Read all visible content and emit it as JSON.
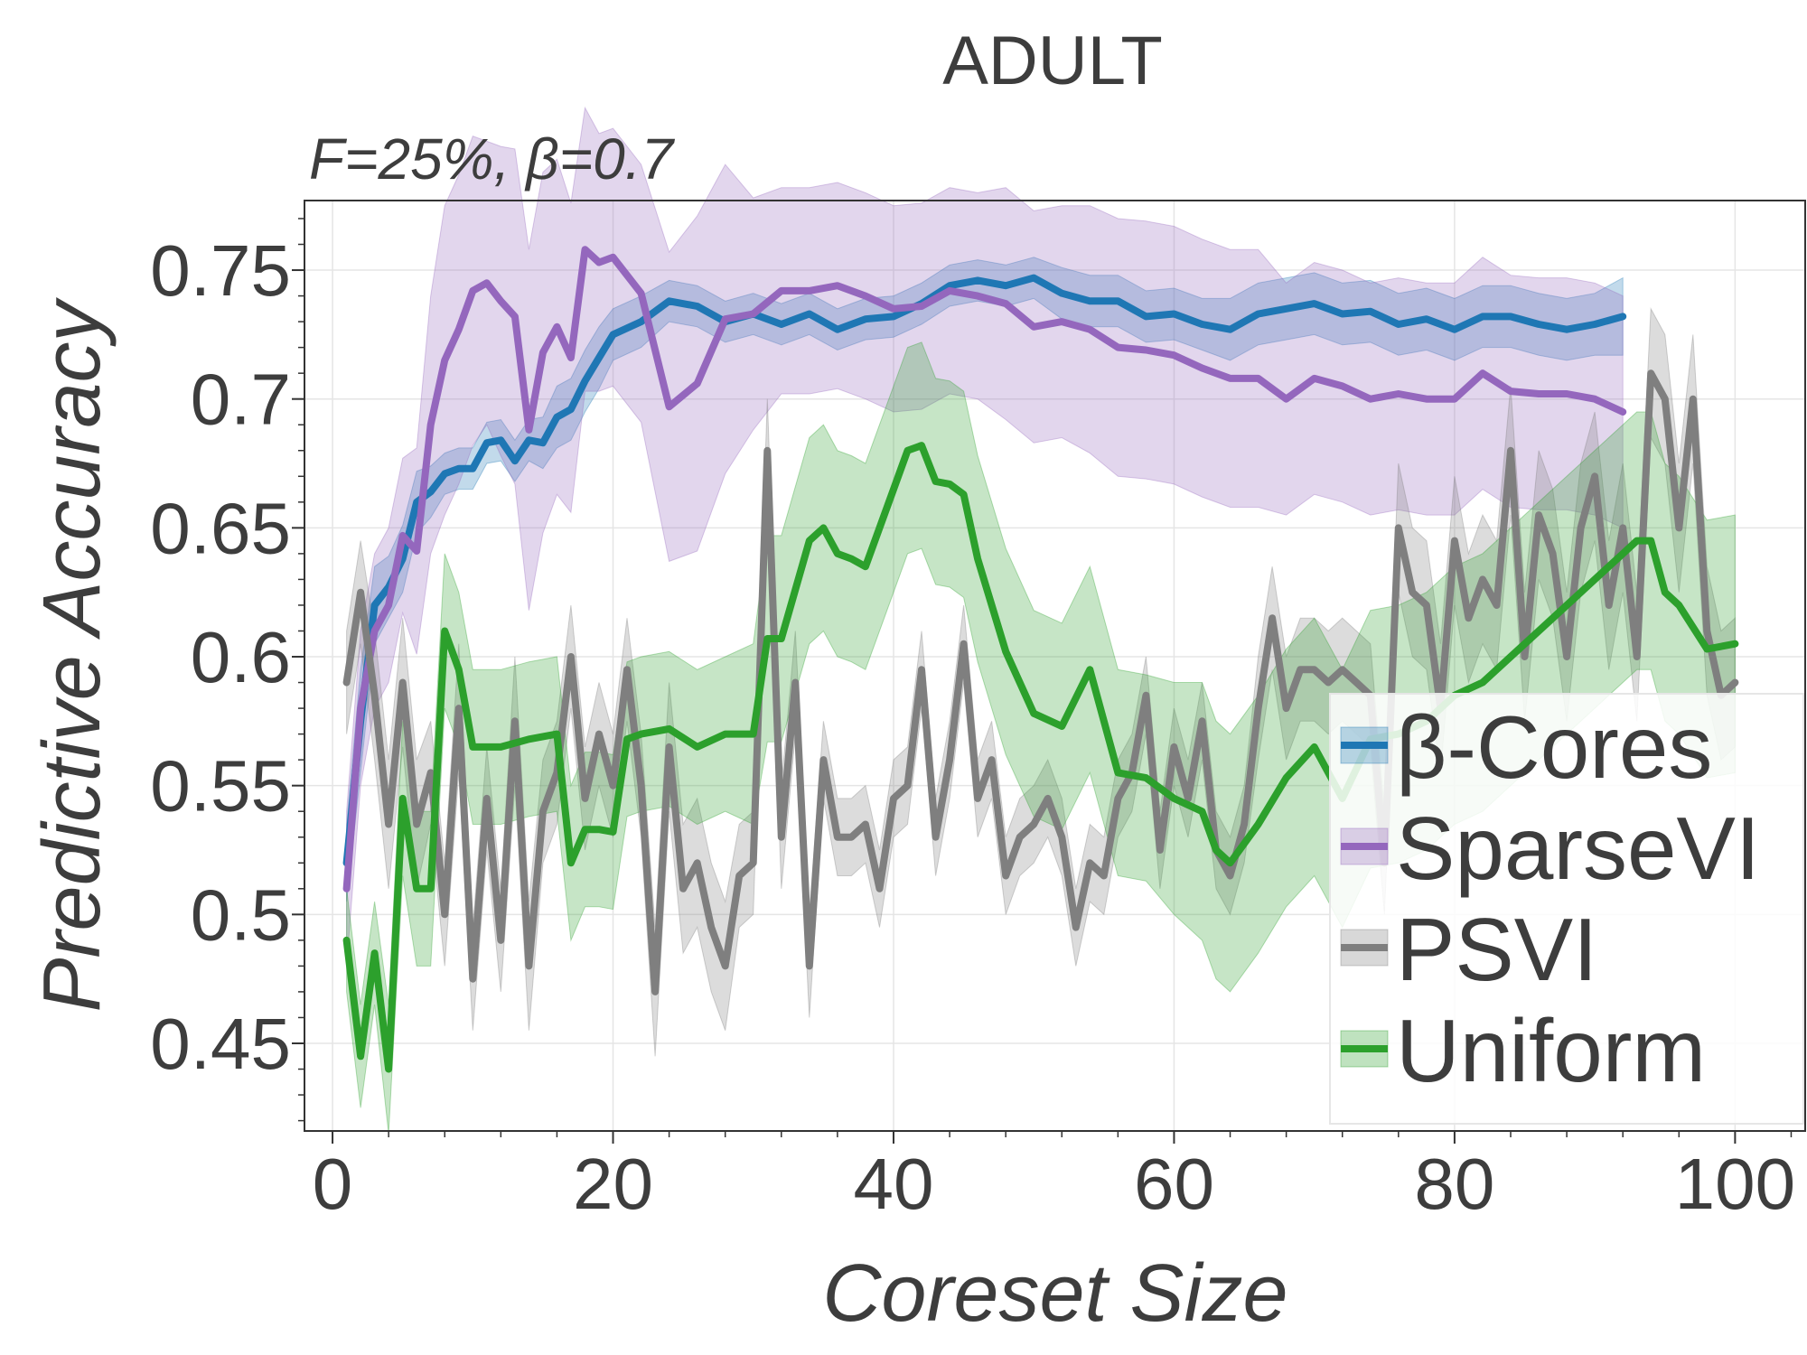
{
  "chart_data": {
    "type": "line",
    "title": "ADULT",
    "subtitle": "F=25%,  β=0.7",
    "xlabel": "Coreset Size",
    "ylabel": "Predictive Accuracy",
    "xlim": [
      -2,
      105
    ],
    "ylim": [
      0.416,
      0.777
    ],
    "xticks": [
      0,
      20,
      40,
      60,
      80,
      100
    ],
    "xtick_labels": [
      "0",
      "20",
      "40",
      "60",
      "80",
      "100"
    ],
    "yticks": [
      0.45,
      0.5,
      0.55,
      0.6,
      0.65,
      0.7,
      0.75
    ],
    "ytick_labels": [
      "0.45",
      "0.5",
      "0.55",
      "0.6",
      "0.65",
      "0.7",
      "0.75"
    ],
    "grid": true,
    "legend_position": "lower-right",
    "series": [
      {
        "name": "β-Cores",
        "color": "#1f77b4",
        "x": [
          1,
          2,
          3,
          4,
          5,
          6,
          7,
          8,
          9,
          10,
          11,
          12,
          13,
          14,
          15,
          16,
          17,
          18,
          19,
          20,
          22,
          24,
          26,
          28,
          30,
          32,
          34,
          36,
          38,
          40,
          42,
          44,
          46,
          48,
          50,
          52,
          54,
          56,
          58,
          60,
          62,
          64,
          66,
          68,
          70,
          72,
          74,
          76,
          78,
          80,
          82,
          84,
          86,
          88,
          90,
          92
        ],
        "values": [
          0.52,
          0.575,
          0.62,
          0.627,
          0.638,
          0.66,
          0.664,
          0.671,
          0.673,
          0.673,
          0.683,
          0.684,
          0.676,
          0.684,
          0.683,
          0.693,
          0.696,
          0.707,
          0.716,
          0.725,
          0.73,
          0.738,
          0.736,
          0.73,
          0.733,
          0.729,
          0.733,
          0.727,
          0.731,
          0.732,
          0.737,
          0.744,
          0.746,
          0.744,
          0.747,
          0.741,
          0.738,
          0.738,
          0.732,
          0.733,
          0.729,
          0.727,
          0.733,
          0.735,
          0.737,
          0.733,
          0.734,
          0.729,
          0.731,
          0.727,
          0.732,
          0.732,
          0.729,
          0.727,
          0.729,
          0.732
        ],
        "band": [
          0.015,
          0.02,
          0.015,
          0.012,
          0.013,
          0.012,
          0.01,
          0.008,
          0.008,
          0.008,
          0.008,
          0.008,
          0.008,
          0.008,
          0.01,
          0.012,
          0.012,
          0.012,
          0.012,
          0.01,
          0.01,
          0.008,
          0.008,
          0.008,
          0.008,
          0.008,
          0.008,
          0.008,
          0.008,
          0.008,
          0.008,
          0.008,
          0.008,
          0.008,
          0.008,
          0.01,
          0.01,
          0.01,
          0.01,
          0.01,
          0.01,
          0.012,
          0.012,
          0.012,
          0.012,
          0.012,
          0.012,
          0.012,
          0.012,
          0.012,
          0.012,
          0.012,
          0.012,
          0.012,
          0.012,
          0.015
        ]
      },
      {
        "name": "SparseVI",
        "color": "#9467bd",
        "x": [
          1,
          2,
          3,
          4,
          5,
          6,
          7,
          8,
          9,
          10,
          11,
          12,
          13,
          14,
          15,
          16,
          17,
          18,
          19,
          20,
          22,
          24,
          26,
          28,
          30,
          32,
          34,
          36,
          38,
          40,
          42,
          44,
          46,
          48,
          50,
          52,
          54,
          56,
          58,
          60,
          62,
          64,
          66,
          68,
          70,
          72,
          74,
          76,
          78,
          80,
          82,
          84,
          86,
          88,
          90,
          92
        ],
        "values": [
          0.51,
          0.58,
          0.61,
          0.62,
          0.647,
          0.641,
          0.69,
          0.715,
          0.727,
          0.742,
          0.745,
          0.738,
          0.732,
          0.688,
          0.718,
          0.728,
          0.716,
          0.758,
          0.753,
          0.755,
          0.741,
          0.697,
          0.706,
          0.731,
          0.733,
          0.742,
          0.742,
          0.744,
          0.74,
          0.735,
          0.736,
          0.742,
          0.74,
          0.737,
          0.728,
          0.73,
          0.727,
          0.72,
          0.719,
          0.717,
          0.712,
          0.708,
          0.708,
          0.7,
          0.708,
          0.705,
          0.7,
          0.702,
          0.7,
          0.7,
          0.71,
          0.703,
          0.702,
          0.702,
          0.7,
          0.695
        ],
        "band": [
          0.03,
          0.03,
          0.03,
          0.03,
          0.03,
          0.04,
          0.05,
          0.06,
          0.06,
          0.06,
          0.055,
          0.06,
          0.065,
          0.07,
          0.07,
          0.065,
          0.06,
          0.055,
          0.05,
          0.05,
          0.05,
          0.06,
          0.065,
          0.06,
          0.045,
          0.04,
          0.04,
          0.04,
          0.04,
          0.04,
          0.04,
          0.04,
          0.04,
          0.045,
          0.045,
          0.045,
          0.048,
          0.05,
          0.05,
          0.05,
          0.05,
          0.05,
          0.05,
          0.045,
          0.045,
          0.045,
          0.045,
          0.045,
          0.045,
          0.045,
          0.045,
          0.045,
          0.045,
          0.045,
          0.045,
          0.045
        ]
      },
      {
        "name": "PSVI",
        "color": "#7f7f7f",
        "x": [
          1,
          2,
          3,
          4,
          5,
          6,
          7,
          8,
          9,
          10,
          11,
          12,
          13,
          14,
          15,
          16,
          17,
          18,
          19,
          20,
          21,
          22,
          23,
          24,
          25,
          26,
          27,
          28,
          29,
          30,
          31,
          32,
          33,
          34,
          35,
          36,
          37,
          38,
          39,
          40,
          41,
          42,
          43,
          44,
          45,
          46,
          47,
          48,
          49,
          50,
          51,
          52,
          53,
          54,
          55,
          56,
          57,
          58,
          59,
          60,
          61,
          62,
          63,
          64,
          65,
          66,
          67,
          68,
          69,
          70,
          71,
          72,
          73,
          74,
          75,
          76,
          77,
          78,
          79,
          80,
          81,
          82,
          83,
          84,
          85,
          86,
          87,
          88,
          89,
          90,
          91,
          92,
          93,
          94,
          95,
          96,
          97,
          98,
          99,
          100
        ],
        "values": [
          0.59,
          0.625,
          0.585,
          0.535,
          0.59,
          0.535,
          0.555,
          0.5,
          0.58,
          0.475,
          0.545,
          0.49,
          0.575,
          0.48,
          0.54,
          0.555,
          0.6,
          0.545,
          0.57,
          0.55,
          0.595,
          0.55,
          0.47,
          0.565,
          0.51,
          0.52,
          0.495,
          0.48,
          0.515,
          0.52,
          0.68,
          0.53,
          0.59,
          0.48,
          0.56,
          0.53,
          0.53,
          0.535,
          0.51,
          0.545,
          0.55,
          0.595,
          0.53,
          0.56,
          0.605,
          0.545,
          0.56,
          0.515,
          0.53,
          0.535,
          0.545,
          0.53,
          0.495,
          0.52,
          0.515,
          0.545,
          0.555,
          0.585,
          0.525,
          0.565,
          0.545,
          0.575,
          0.525,
          0.515,
          0.535,
          0.58,
          0.615,
          0.58,
          0.595,
          0.595,
          0.59,
          0.595,
          0.59,
          0.585,
          0.52,
          0.65,
          0.625,
          0.62,
          0.58,
          0.645,
          0.615,
          0.63,
          0.62,
          0.68,
          0.6,
          0.655,
          0.64,
          0.6,
          0.65,
          0.67,
          0.62,
          0.65,
          0.6,
          0.71,
          0.7,
          0.65,
          0.7,
          0.61,
          0.585,
          0.59
        ],
        "band": [
          0.02,
          0.02,
          0.025,
          0.025,
          0.025,
          0.025,
          0.02,
          0.02,
          0.025,
          0.02,
          0.02,
          0.02,
          0.025,
          0.025,
          0.02,
          0.02,
          0.02,
          0.02,
          0.02,
          0.02,
          0.02,
          0.02,
          0.025,
          0.025,
          0.025,
          0.025,
          0.025,
          0.025,
          0.02,
          0.02,
          0.02,
          0.02,
          0.02,
          0.02,
          0.015,
          0.015,
          0.015,
          0.015,
          0.015,
          0.015,
          0.015,
          0.015,
          0.015,
          0.015,
          0.015,
          0.015,
          0.015,
          0.015,
          0.015,
          0.015,
          0.015,
          0.015,
          0.015,
          0.015,
          0.015,
          0.015,
          0.015,
          0.015,
          0.015,
          0.015,
          0.015,
          0.015,
          0.015,
          0.015,
          0.015,
          0.02,
          0.02,
          0.02,
          0.02,
          0.02,
          0.02,
          0.02,
          0.02,
          0.02,
          0.02,
          0.025,
          0.025,
          0.025,
          0.025,
          0.025,
          0.025,
          0.025,
          0.025,
          0.025,
          0.025,
          0.025,
          0.025,
          0.025,
          0.025,
          0.025,
          0.025,
          0.025,
          0.025,
          0.025,
          0.025,
          0.025,
          0.025,
          0.025,
          0.025,
          0.025
        ]
      },
      {
        "name": "Uniform",
        "color": "#2ca02c",
        "x": [
          1,
          2,
          3,
          4,
          5,
          6,
          7,
          8,
          9,
          10,
          12,
          14,
          16,
          17,
          18,
          19,
          20,
          21,
          22,
          24,
          26,
          28,
          30,
          31,
          32,
          34,
          35,
          36,
          37,
          38,
          40,
          41,
          42,
          43,
          44,
          45,
          46,
          48,
          50,
          52,
          54,
          56,
          58,
          60,
          62,
          63,
          64,
          66,
          68,
          70,
          72,
          74,
          76,
          78,
          80,
          82,
          84,
          86,
          88,
          90,
          92,
          93,
          94,
          95,
          96,
          98,
          100
        ],
        "values": [
          0.49,
          0.445,
          0.485,
          0.44,
          0.545,
          0.51,
          0.51,
          0.61,
          0.595,
          0.565,
          0.565,
          0.568,
          0.57,
          0.52,
          0.533,
          0.533,
          0.532,
          0.568,
          0.57,
          0.572,
          0.565,
          0.57,
          0.57,
          0.607,
          0.607,
          0.645,
          0.65,
          0.64,
          0.638,
          0.635,
          0.665,
          0.68,
          0.682,
          0.668,
          0.667,
          0.663,
          0.638,
          0.602,
          0.578,
          0.573,
          0.595,
          0.555,
          0.553,
          0.545,
          0.54,
          0.525,
          0.52,
          0.535,
          0.553,
          0.565,
          0.545,
          0.568,
          0.57,
          0.575,
          0.585,
          0.59,
          0.6,
          0.61,
          0.62,
          0.63,
          0.64,
          0.645,
          0.645,
          0.625,
          0.62,
          0.603,
          0.605
        ],
        "band": [
          0.02,
          0.02,
          0.02,
          0.025,
          0.03,
          0.03,
          0.03,
          0.03,
          0.03,
          0.03,
          0.03,
          0.03,
          0.03,
          0.03,
          0.03,
          0.03,
          0.03,
          0.03,
          0.03,
          0.03,
          0.03,
          0.03,
          0.035,
          0.04,
          0.04,
          0.04,
          0.04,
          0.04,
          0.04,
          0.04,
          0.04,
          0.04,
          0.04,
          0.04,
          0.04,
          0.04,
          0.04,
          0.04,
          0.04,
          0.04,
          0.04,
          0.04,
          0.04,
          0.045,
          0.05,
          0.05,
          0.05,
          0.05,
          0.05,
          0.05,
          0.05,
          0.05,
          0.05,
          0.05,
          0.05,
          0.05,
          0.05,
          0.05,
          0.05,
          0.05,
          0.05,
          0.05,
          0.05,
          0.05,
          0.05,
          0.05,
          0.05
        ]
      }
    ]
  }
}
